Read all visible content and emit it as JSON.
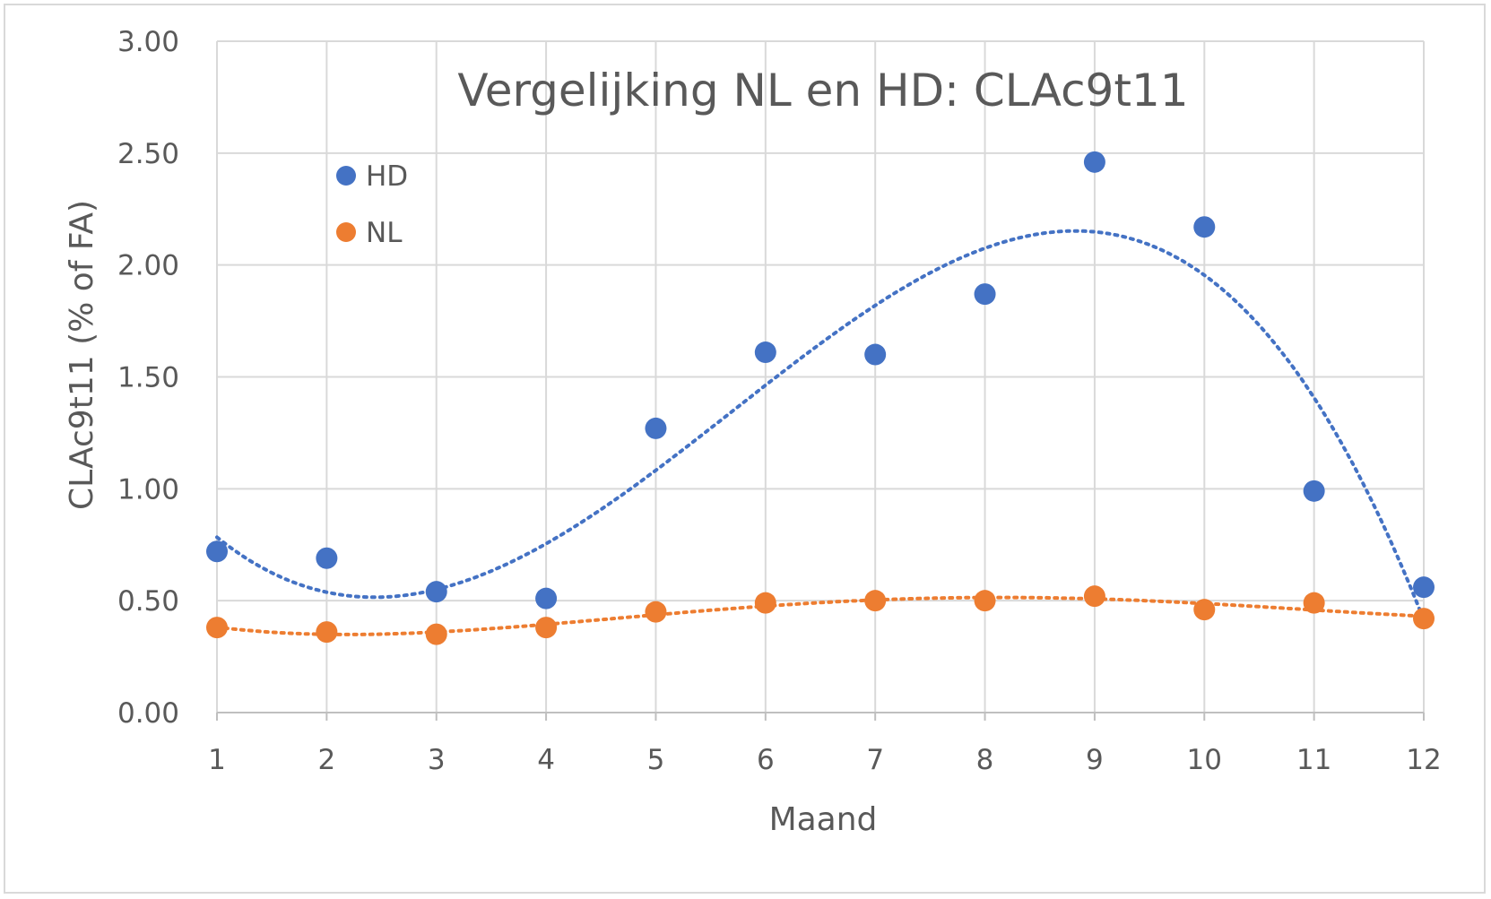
{
  "chart_data": {
    "type": "scatter",
    "title": "Vergelijking NL en HD: CLAc9t11",
    "xlabel": "Maand",
    "ylabel": "CLAc9t11 (% of FA)",
    "x": [
      1,
      2,
      3,
      4,
      5,
      6,
      7,
      8,
      9,
      10,
      11,
      12
    ],
    "x_tick_labels": [
      "1",
      "2",
      "3",
      "4",
      "5",
      "6",
      "7",
      "8",
      "9",
      "10",
      "11",
      "12"
    ],
    "xlim": [
      1,
      12
    ],
    "ylim": [
      0,
      3
    ],
    "y_tick_labels": [
      "0.00",
      "0.50",
      "1.00",
      "1.50",
      "2.00",
      "2.50",
      "3.00"
    ],
    "y_ticks": [
      0,
      0.5,
      1,
      1.5,
      2,
      2.5,
      3
    ],
    "grid": true,
    "legend_position": "upper-left",
    "series": [
      {
        "name": "HD",
        "color": "#4472c4",
        "values": [
          0.72,
          0.69,
          0.54,
          0.51,
          1.27,
          1.61,
          1.6,
          1.87,
          2.46,
          2.17,
          0.99,
          0.56
        ],
        "trendline": "dotted polynomial"
      },
      {
        "name": "NL",
        "color": "#ed7d31",
        "values": [
          0.38,
          0.36,
          0.35,
          0.38,
          0.45,
          0.49,
          0.5,
          0.5,
          0.52,
          0.46,
          0.49,
          0.42
        ],
        "trendline": "dotted polynomial"
      }
    ]
  }
}
